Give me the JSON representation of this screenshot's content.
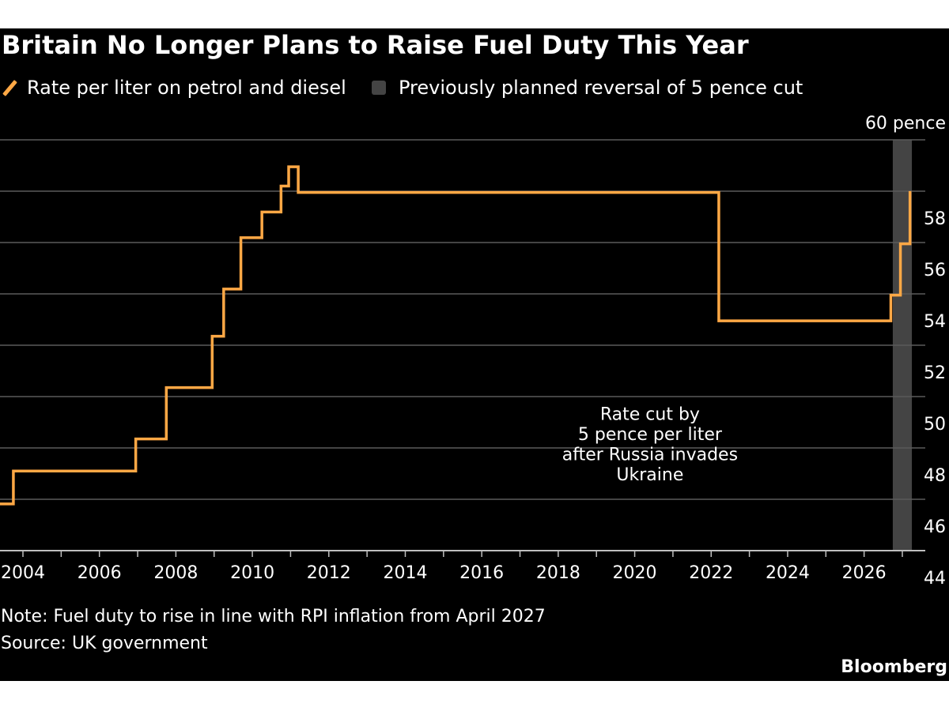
{
  "title": "Britain No Longer Plans to Raise Fuel Duty This Year",
  "legend": {
    "line_label": "Rate per liter on petrol and diesel",
    "shade_label": "Previously planned reversal of 5 pence cut"
  },
  "note": "Note: Fuel duty to rise in line with RPI inflation from April 2027",
  "source": "Source: UK government",
  "brand": "Bloomberg",
  "colors": {
    "line": "#ffa845",
    "shade": "#444444",
    "grid": "#5a5a5a",
    "background": "#000000",
    "text": "#ffffff"
  },
  "chart_data": {
    "type": "line",
    "title": "Britain No Longer Plans to Raise Fuel Duty This Year",
    "xlabel": "",
    "ylabel": "",
    "xlim": [
      2003.4,
      2027.6
    ],
    "ylim": [
      44,
      60
    ],
    "y_unit_label": "60 pence",
    "x_ticks": [
      2004,
      2006,
      2008,
      2010,
      2012,
      2014,
      2016,
      2018,
      2020,
      2022,
      2024,
      2026
    ],
    "x_tick_labels": [
      "2004",
      "2006",
      "2008",
      "2010",
      "2012",
      "2014",
      "2016",
      "2018",
      "2020",
      "2022",
      "2024",
      "2026"
    ],
    "y_ticks": [
      44,
      46,
      48,
      50,
      52,
      54,
      56,
      58
    ],
    "y_tick_labels": [
      "44",
      "46",
      "48",
      "50",
      "52",
      "54",
      "56",
      "58"
    ],
    "grid": true,
    "legend_position": "top-left",
    "series": [
      {
        "name": "Rate per liter on petrol and diesel",
        "step": true,
        "x": [
          2003.4,
          2003.75,
          2006.95,
          2007.75,
          2008.95,
          2009.25,
          2009.7,
          2010.25,
          2010.75,
          2010.95,
          2011.2,
          2022.2,
          2026.7,
          2026.95,
          2027.2
        ],
        "y": [
          45.82,
          47.1,
          48.35,
          50.35,
          52.35,
          54.19,
          56.19,
          57.19,
          58.2,
          58.95,
          57.95,
          52.95,
          53.95,
          55.95,
          57.95
        ]
      }
    ],
    "shaded_region": {
      "label": "Previously planned reversal of 5 pence cut",
      "x": [
        2026.75,
        2027.25
      ]
    },
    "annotations": [
      {
        "text": [
          "Rate cut by",
          "5 pence per liter",
          "after Russia invades",
          "Ukraine"
        ],
        "x": 2020.4,
        "y": 49.1
      }
    ]
  }
}
